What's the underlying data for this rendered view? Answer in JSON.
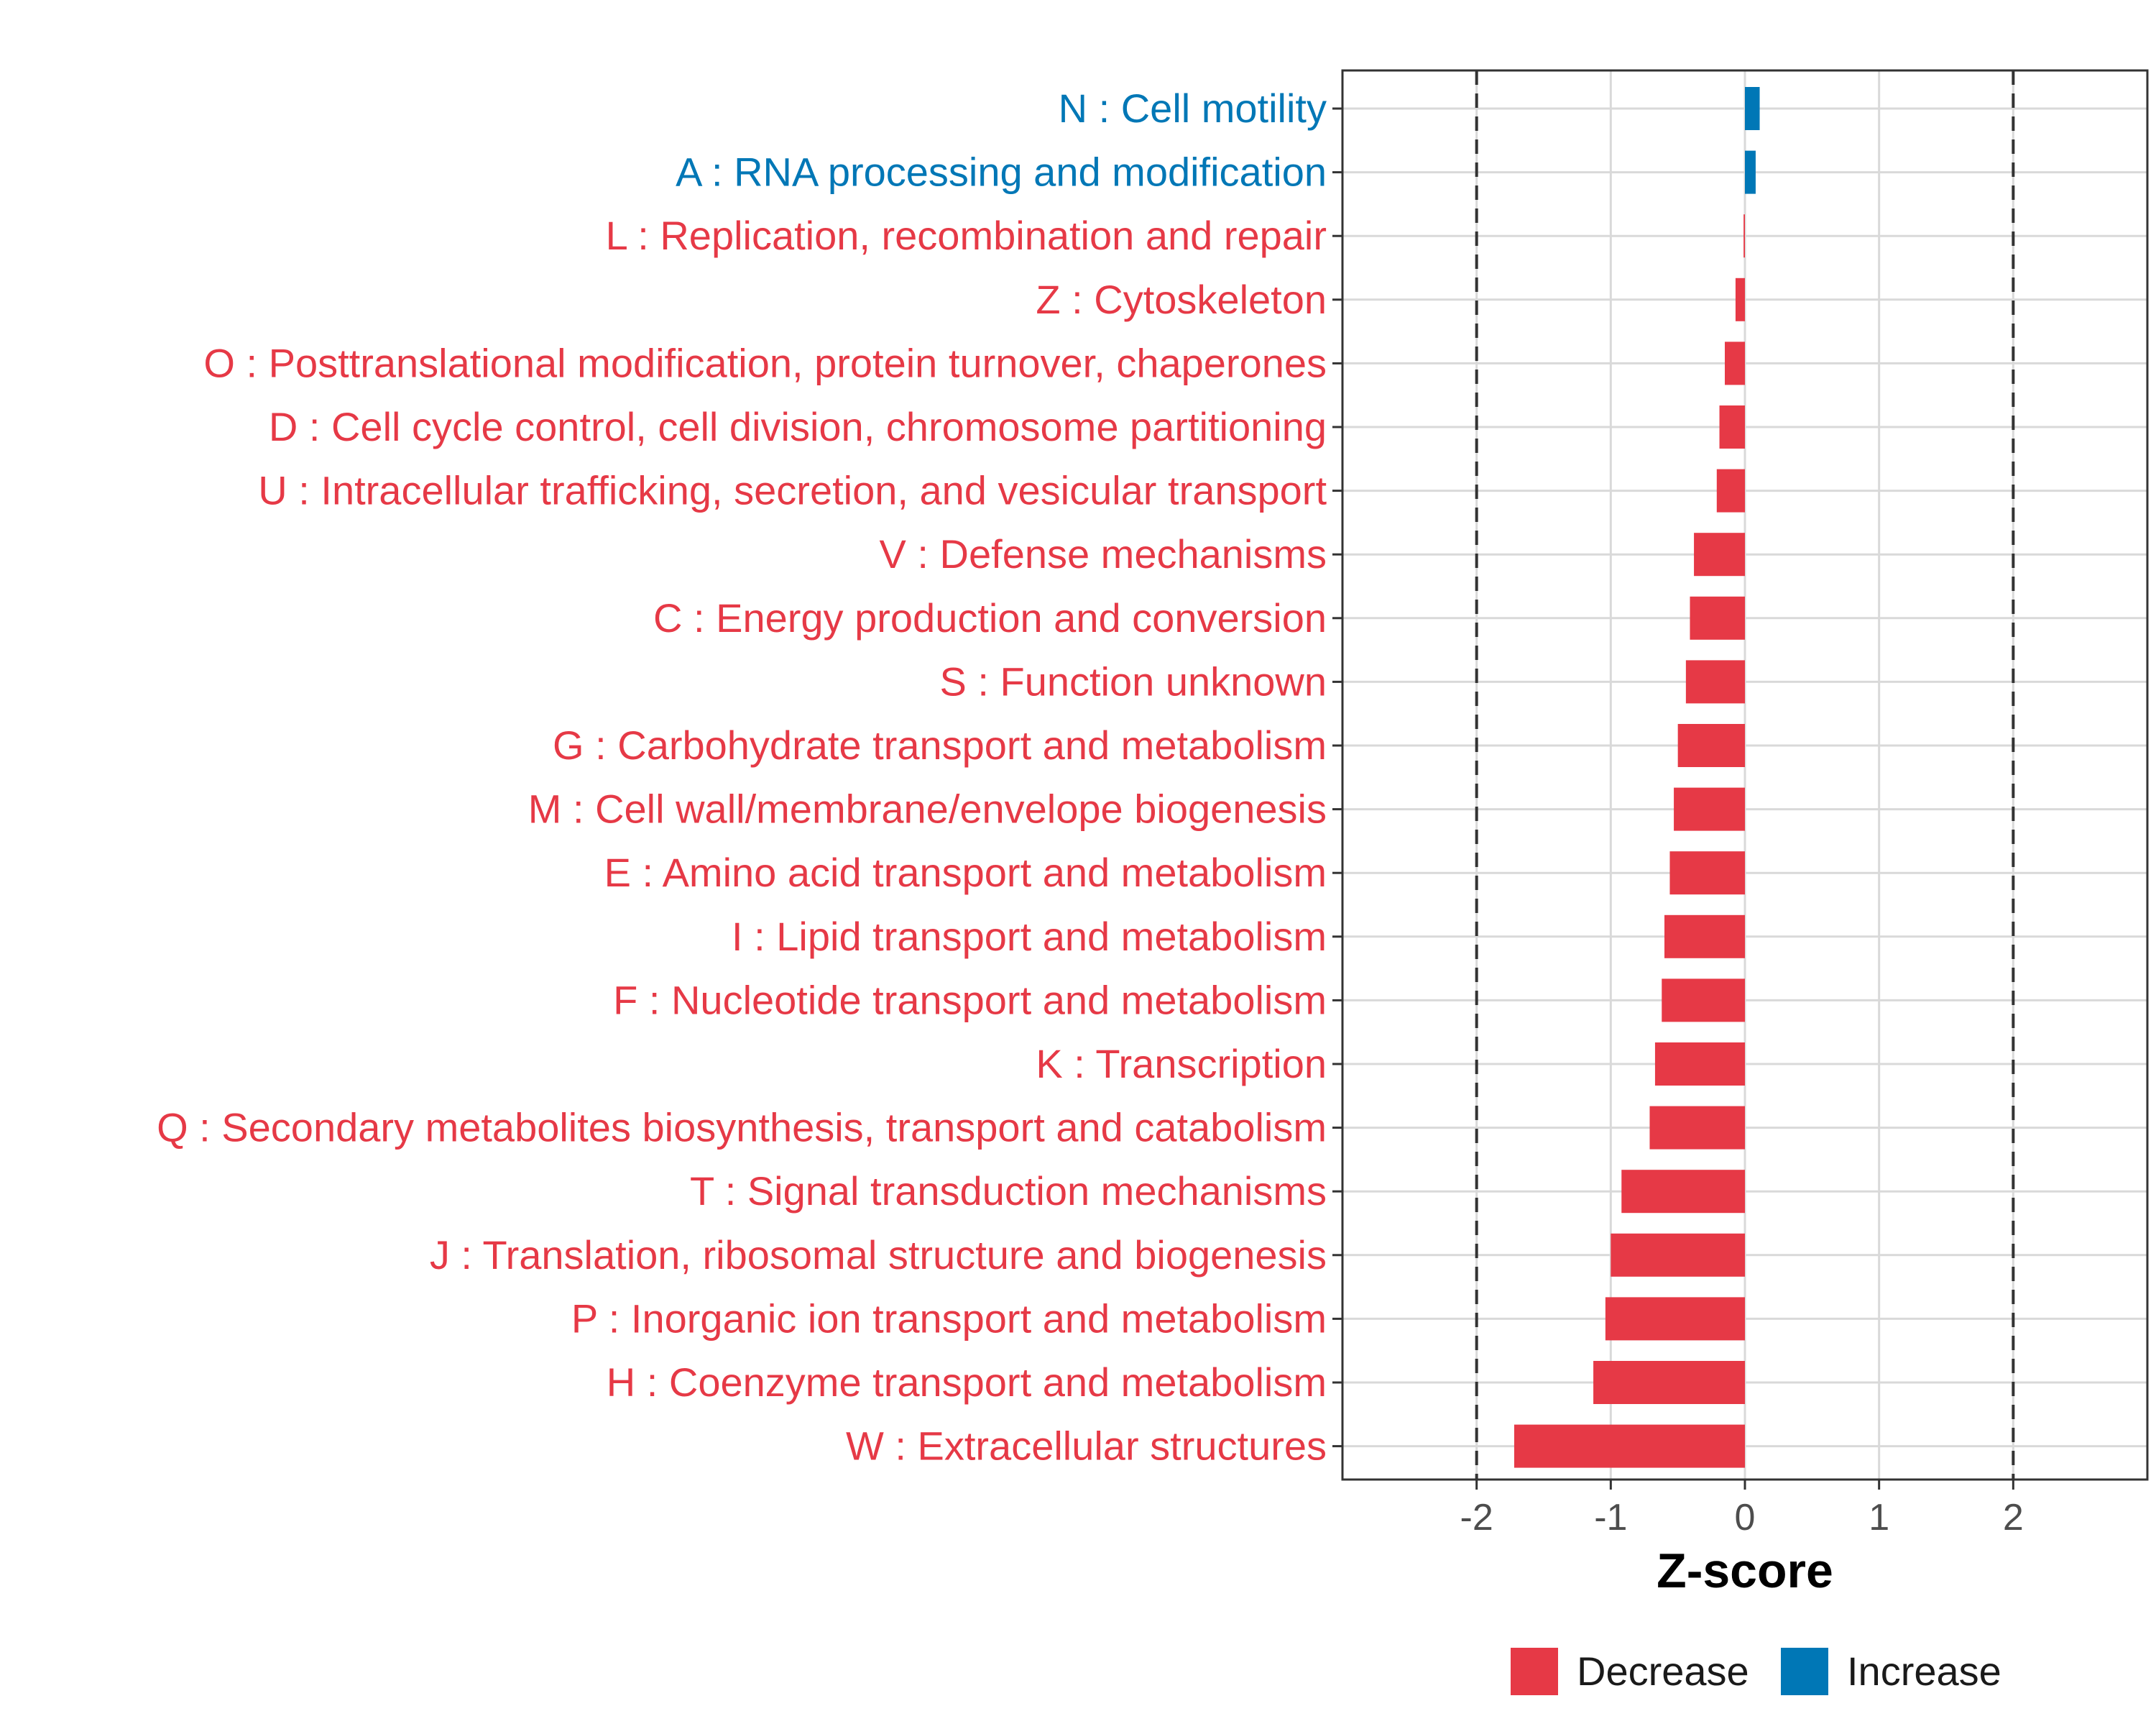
{
  "chart_data": {
    "type": "bar",
    "orientation": "horizontal",
    "xlabel": "Z-score",
    "ylabel": "",
    "xlim": [
      -3,
      3
    ],
    "xticks": [
      -2,
      -1,
      0,
      1,
      2
    ],
    "xtick_labels": [
      "-2",
      "-1",
      "0",
      "1",
      "2"
    ],
    "reference_lines": [
      -2,
      2
    ],
    "grid": true,
    "categories": [
      "N : Cell motility",
      "A : RNA processing and modification",
      "L : Replication, recombination and repair",
      "Z : Cytoskeleton",
      "O : Posttranslational modification, protein turnover, chaperones",
      "D : Cell cycle control, cell division, chromosome partitioning",
      "U : Intracellular trafficking, secretion, and vesicular transport",
      "V : Defense mechanisms",
      "C : Energy production and conversion",
      "S : Function unknown",
      "G : Carbohydrate transport and metabolism",
      "M : Cell wall/membrane/envelope biogenesis",
      "E : Amino acid transport and metabolism",
      "I : Lipid transport and metabolism",
      "F : Nucleotide transport and metabolism",
      "K : Transcription",
      "Q : Secondary metabolites biosynthesis, transport and catabolism",
      "T : Signal transduction mechanisms",
      "J : Translation, ribosomal structure and biogenesis",
      "P : Inorganic ion transport and metabolism",
      "H : Coenzyme transport and metabolism",
      "W : Extracellular structures"
    ],
    "values": [
      0.11,
      0.08,
      -0.01,
      -0.07,
      -0.15,
      -0.19,
      -0.21,
      -0.38,
      -0.41,
      -0.44,
      -0.5,
      -0.53,
      -0.56,
      -0.6,
      -0.62,
      -0.67,
      -0.71,
      -0.92,
      -1.0,
      -1.04,
      -1.13,
      -1.72
    ],
    "direction": [
      "Increase",
      "Increase",
      "Decrease",
      "Decrease",
      "Decrease",
      "Decrease",
      "Decrease",
      "Decrease",
      "Decrease",
      "Decrease",
      "Decrease",
      "Decrease",
      "Decrease",
      "Decrease",
      "Decrease",
      "Decrease",
      "Decrease",
      "Decrease",
      "Decrease",
      "Decrease",
      "Decrease",
      "Decrease"
    ],
    "legend": {
      "position": "bottom",
      "entries": [
        {
          "label": "Decrease",
          "color": "#e63946"
        },
        {
          "label": "Increase",
          "color": "#0077b6"
        }
      ]
    },
    "colors": {
      "Decrease": "#e63946",
      "Increase": "#0077b6"
    }
  }
}
